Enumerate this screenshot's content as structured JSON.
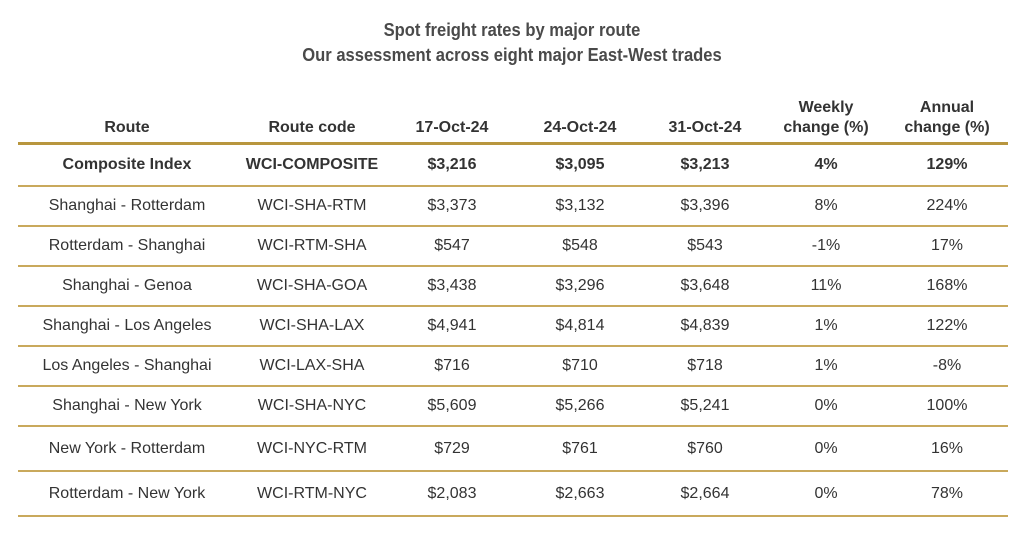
{
  "title": "Spot freight rates by major route",
  "subtitle": "Our assessment across eight major East-West trades",
  "colors": {
    "rule": "#c9a95c",
    "text": "#333333"
  },
  "headers": {
    "route": "Route",
    "code": "Route code",
    "date1": "17-Oct-24",
    "date2": "24-Oct-24",
    "date3": "31-Oct-24",
    "weekly_line1": "Weekly",
    "weekly_line2": "change (%)",
    "annual_line1": "Annual",
    "annual_line2": "change (%)"
  },
  "rows": [
    {
      "route": "Composite Index",
      "code": "WCI-COMPOSITE",
      "d1": "$3,216",
      "d2": "$3,095",
      "d3": "$3,213",
      "weekly": "4%",
      "annual": "129%"
    },
    {
      "route": "Shanghai - Rotterdam",
      "code": "WCI-SHA-RTM",
      "d1": "$3,373",
      "d2": "$3,132",
      "d3": "$3,396",
      "weekly": "8%",
      "annual": "224%"
    },
    {
      "route": "Rotterdam - Shanghai",
      "code": "WCI-RTM-SHA",
      "d1": "$547",
      "d2": "$548",
      "d3": "$543",
      "weekly": "-1%",
      "annual": "17%"
    },
    {
      "route": "Shanghai - Genoa",
      "code": "WCI-SHA-GOA",
      "d1": "$3,438",
      "d2": "$3,296",
      "d3": "$3,648",
      "weekly": "11%",
      "annual": "168%"
    },
    {
      "route": "Shanghai - Los Angeles",
      "code": "WCI-SHA-LAX",
      "d1": "$4,941",
      "d2": "$4,814",
      "d3": "$4,839",
      "weekly": "1%",
      "annual": "122%"
    },
    {
      "route": "Los Angeles - Shanghai",
      "code": "WCI-LAX-SHA",
      "d1": "$716",
      "d2": "$710",
      "d3": "$718",
      "weekly": "1%",
      "annual": "-8%"
    },
    {
      "route": "Shanghai - New York",
      "code": "WCI-SHA-NYC",
      "d1": "$5,609",
      "d2": "$5,266",
      "d3": "$5,241",
      "weekly": "0%",
      "annual": "100%"
    },
    {
      "route": "New York - Rotterdam",
      "code": "WCI-NYC-RTM",
      "d1": "$729",
      "d2": "$761",
      "d3": "$760",
      "weekly": "0%",
      "annual": "16%"
    },
    {
      "route": "Rotterdam - New York",
      "code": "WCI-RTM-NYC",
      "d1": "$2,083",
      "d2": "$2,663",
      "d3": "$2,664",
      "weekly": "0%",
      "annual": "78%"
    }
  ]
}
